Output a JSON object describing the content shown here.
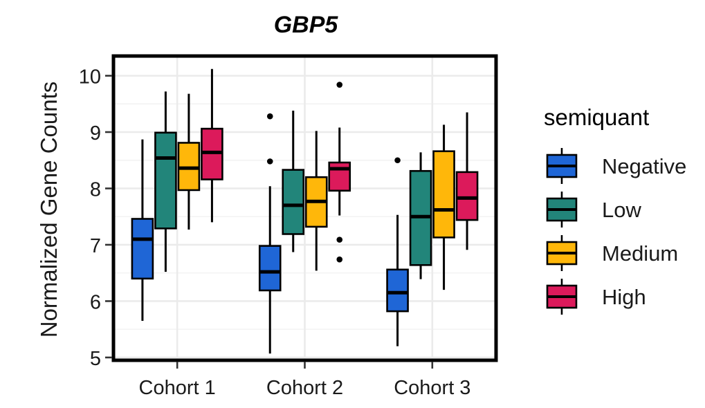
{
  "chart_data": {
    "type": "boxplot",
    "title": "GBP5",
    "xlabel": "",
    "ylabel": "Normalized Gene Counts",
    "ylim": [
      4.95,
      10.35
    ],
    "yticks": [
      5,
      6,
      7,
      8,
      9,
      10
    ],
    "grid": true,
    "categories": [
      "Cohort 1",
      "Cohort 2",
      "Cohort 3"
    ],
    "legend": {
      "title": "semiquant",
      "position": "right"
    },
    "series": [
      {
        "name": "Negative",
        "color": "#1f66d6",
        "boxes": [
          {
            "whisker_low": 5.65,
            "q1": 6.4,
            "median": 7.1,
            "q3": 7.46,
            "whisker_high": 8.87,
            "outliers": []
          },
          {
            "whisker_low": 5.07,
            "q1": 6.19,
            "median": 6.52,
            "q3": 6.98,
            "whisker_high": 8.04,
            "outliers": [
              8.48,
              9.28
            ]
          },
          {
            "whisker_low": 5.2,
            "q1": 5.82,
            "median": 6.15,
            "q3": 6.56,
            "whisker_high": 7.53,
            "outliers": [
              8.5
            ]
          }
        ]
      },
      {
        "name": "Low",
        "color": "#22857a",
        "boxes": [
          {
            "whisker_low": 6.52,
            "q1": 7.29,
            "median": 8.54,
            "q3": 8.99,
            "whisker_high": 9.72,
            "outliers": []
          },
          {
            "whisker_low": 6.87,
            "q1": 7.19,
            "median": 7.7,
            "q3": 8.33,
            "whisker_high": 9.38,
            "outliers": []
          },
          {
            "whisker_low": 6.39,
            "q1": 6.64,
            "median": 7.5,
            "q3": 8.31,
            "whisker_high": 8.64,
            "outliers": []
          }
        ]
      },
      {
        "name": "Medium",
        "color": "#ffb70a",
        "boxes": [
          {
            "whisker_low": 7.27,
            "q1": 7.97,
            "median": 8.36,
            "q3": 8.81,
            "whisker_high": 9.68,
            "outliers": []
          },
          {
            "whisker_low": 6.54,
            "q1": 7.32,
            "median": 7.77,
            "q3": 8.2,
            "whisker_high": 9.02,
            "outliers": []
          },
          {
            "whisker_low": 6.2,
            "q1": 7.13,
            "median": 7.62,
            "q3": 8.66,
            "whisker_high": 9.13,
            "outliers": []
          }
        ]
      },
      {
        "name": "High",
        "color": "#dc1a5b",
        "boxes": [
          {
            "whisker_low": 7.4,
            "q1": 8.16,
            "median": 8.64,
            "q3": 9.06,
            "whisker_high": 10.12,
            "outliers": []
          },
          {
            "whisker_low": 7.52,
            "q1": 7.96,
            "median": 8.35,
            "q3": 8.46,
            "whisker_high": 9.08,
            "outliers": [
              9.84,
              7.09,
              6.74
            ]
          },
          {
            "whisker_low": 6.91,
            "q1": 7.44,
            "median": 7.83,
            "q3": 8.29,
            "whisker_high": 9.35,
            "outliers": []
          }
        ]
      }
    ]
  }
}
